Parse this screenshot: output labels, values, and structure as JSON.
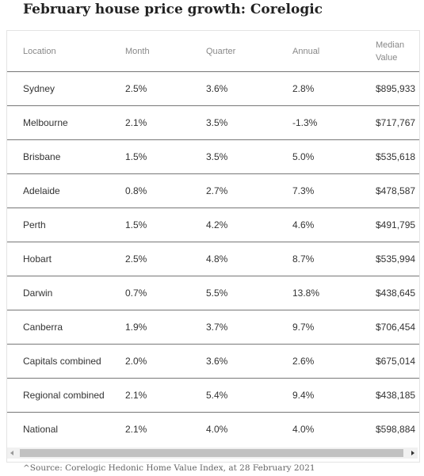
{
  "header": {
    "title": "February house price growth: Corelogic"
  },
  "table": {
    "columns": [
      "Location",
      "Month",
      "Quarter",
      "Annual",
      "Median Value"
    ],
    "rows": [
      [
        "Sydney",
        "2.5%",
        "3.6%",
        "2.8%",
        "$895,933"
      ],
      [
        "Melbourne",
        "2.1%",
        "3.5%",
        "-1.3%",
        "$717,767"
      ],
      [
        "Brisbane",
        "1.5%",
        "3.5%",
        "5.0%",
        "$535,618"
      ],
      [
        "Adelaide",
        "0.8%",
        "2.7%",
        "7.3%",
        "$478,587"
      ],
      [
        "Perth",
        "1.5%",
        "4.2%",
        "4.6%",
        "$491,795"
      ],
      [
        "Hobart",
        "2.5%",
        "4.8%",
        "8.7%",
        "$535,994"
      ],
      [
        "Darwin",
        "0.7%",
        "5.5%",
        "13.8%",
        "$438,645"
      ],
      [
        "Canberra",
        "1.9%",
        "3.7%",
        "9.7%",
        "$706,454"
      ],
      [
        "Capitals combined",
        "2.0%",
        "3.6%",
        "2.6%",
        "$675,014"
      ],
      [
        "Regional combined",
        "2.1%",
        "5.4%",
        "9.4%",
        "$438,185"
      ],
      [
        "National",
        "2.1%",
        "4.0%",
        "4.0%",
        "$598,884"
      ]
    ]
  },
  "source": "^Source: Corelogic Hedonic Home Value Index, at 28 February 2021"
}
